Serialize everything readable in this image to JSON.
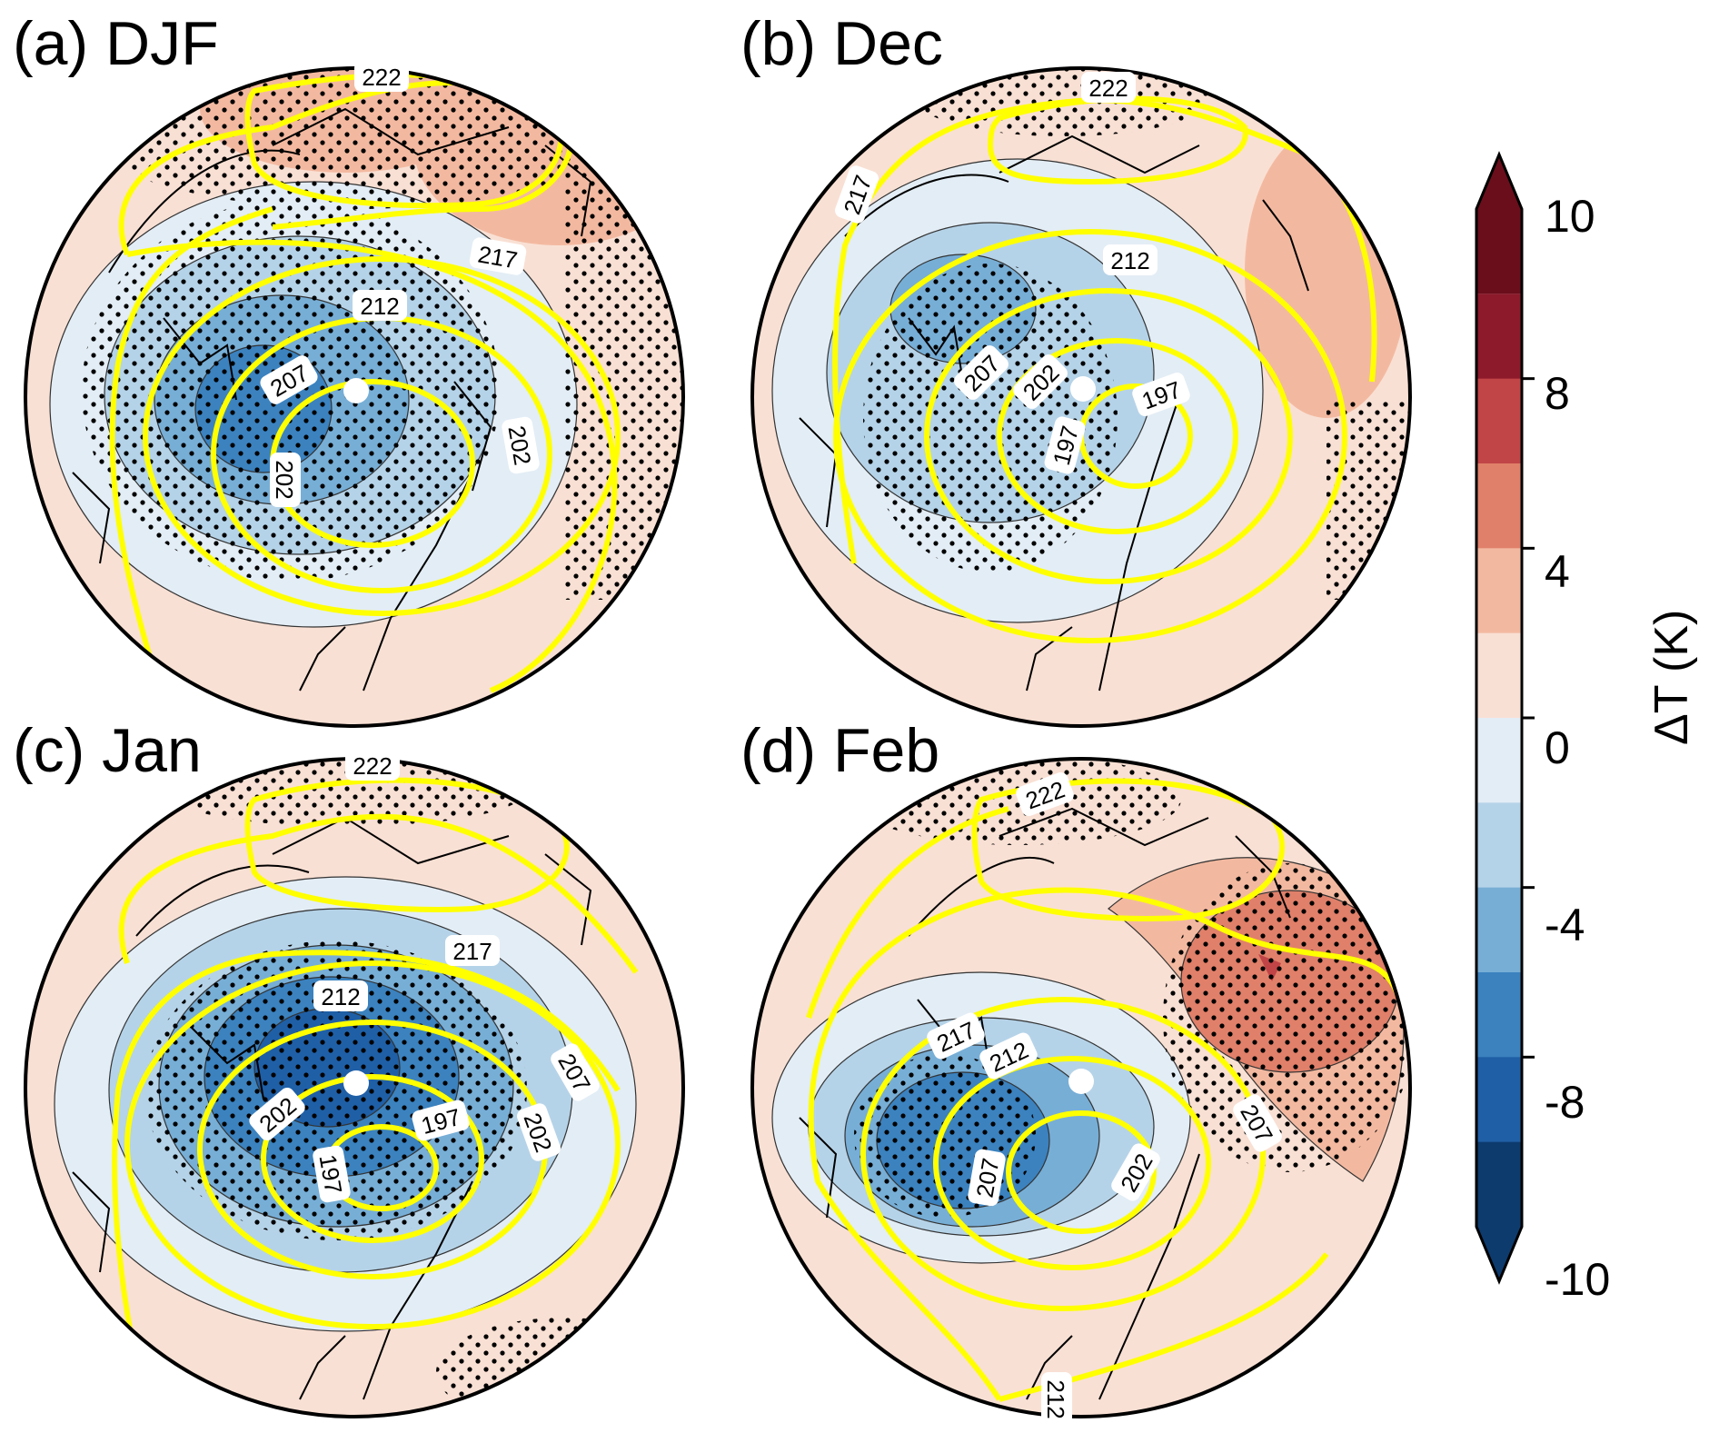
{
  "panels": [
    {
      "title": "(a) DJF",
      "contour_labels": [
        "222",
        "217",
        "212",
        "207",
        "202",
        "202"
      ]
    },
    {
      "title": "(b) Dec",
      "contour_labels": [
        "222",
        "217",
        "212",
        "207",
        "202",
        "197",
        "197"
      ]
    },
    {
      "title": "(c) Jan",
      "contour_labels": [
        "222",
        "217",
        "212",
        "202",
        "207",
        "202",
        "197",
        "197"
      ]
    },
    {
      "title": "(d) Feb",
      "contour_labels": [
        "222",
        "217",
        "212",
        "207",
        "207",
        "202",
        "212"
      ]
    }
  ],
  "colorbar": {
    "label": "ΔT (K)",
    "tick_labels": [
      "10",
      "8",
      "4",
      "0",
      "-4",
      "-8",
      "-10"
    ],
    "levels": [
      -10,
      -8,
      -6,
      -4,
      -2,
      0,
      2,
      4,
      6,
      8,
      10
    ],
    "colors": [
      "#0d3b6e",
      "#1f5fa6",
      "#3b82bf",
      "#77aed6",
      "#b5d3e8",
      "#e3edf5",
      "#f9e0d4",
      "#f3b9a0",
      "#e0806a",
      "#c14447",
      "#8c1a2b",
      "#6a0e1c"
    ]
  },
  "colors": {
    "contour_line": "#ffff00",
    "stipple": "#000000",
    "pole_marker": "#ffffff"
  }
}
